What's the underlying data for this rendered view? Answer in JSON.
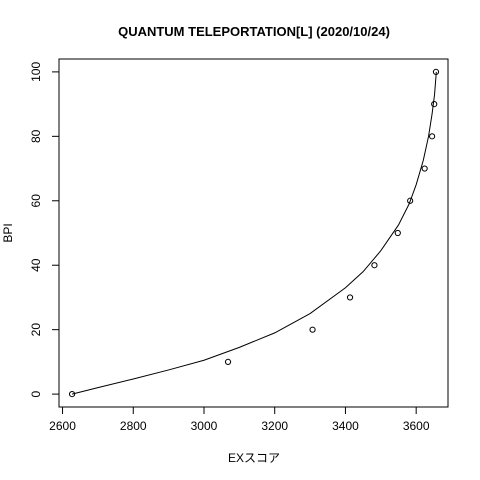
{
  "chart_data": {
    "type": "scatter",
    "title": "QUANTUM TELEPORTATION[L] (2020/10/24)",
    "xlabel": "EXスコア",
    "ylabel": "BPI",
    "xlim": [
      2590,
      3690
    ],
    "ylim": [
      -4,
      104
    ],
    "x_ticks": [
      2600,
      2800,
      3000,
      3200,
      3400,
      3600
    ],
    "y_ticks": [
      0,
      20,
      40,
      60,
      80,
      100
    ],
    "grid": false,
    "legend": "none",
    "series": [
      {
        "marker": "open-circle",
        "points": [
          {
            "x": 2627,
            "y": 0
          },
          {
            "x": 3068,
            "y": 10
          },
          {
            "x": 3307,
            "y": 20
          },
          {
            "x": 3413,
            "y": 30
          },
          {
            "x": 3482,
            "y": 40
          },
          {
            "x": 3548,
            "y": 50
          },
          {
            "x": 3583,
            "y": 60
          },
          {
            "x": 3624,
            "y": 70
          },
          {
            "x": 3645,
            "y": 80
          },
          {
            "x": 3651,
            "y": 90
          },
          {
            "x": 3656,
            "y": 100
          }
        ]
      }
    ],
    "fit_curve": {
      "style": "line",
      "points": [
        {
          "x": 2627,
          "y": 0
        },
        {
          "x": 2700,
          "y": 2
        },
        {
          "x": 2800,
          "y": 4.7
        },
        {
          "x": 2900,
          "y": 7.5
        },
        {
          "x": 3000,
          "y": 10.5
        },
        {
          "x": 3100,
          "y": 14.5
        },
        {
          "x": 3200,
          "y": 19
        },
        {
          "x": 3300,
          "y": 25
        },
        {
          "x": 3400,
          "y": 33
        },
        {
          "x": 3450,
          "y": 38
        },
        {
          "x": 3500,
          "y": 44.5
        },
        {
          "x": 3550,
          "y": 52.5
        },
        {
          "x": 3580,
          "y": 59
        },
        {
          "x": 3600,
          "y": 65
        },
        {
          "x": 3620,
          "y": 72.5
        },
        {
          "x": 3635,
          "y": 80
        },
        {
          "x": 3645,
          "y": 87
        },
        {
          "x": 3652,
          "y": 93
        },
        {
          "x": 3657,
          "y": 100
        }
      ]
    }
  }
}
